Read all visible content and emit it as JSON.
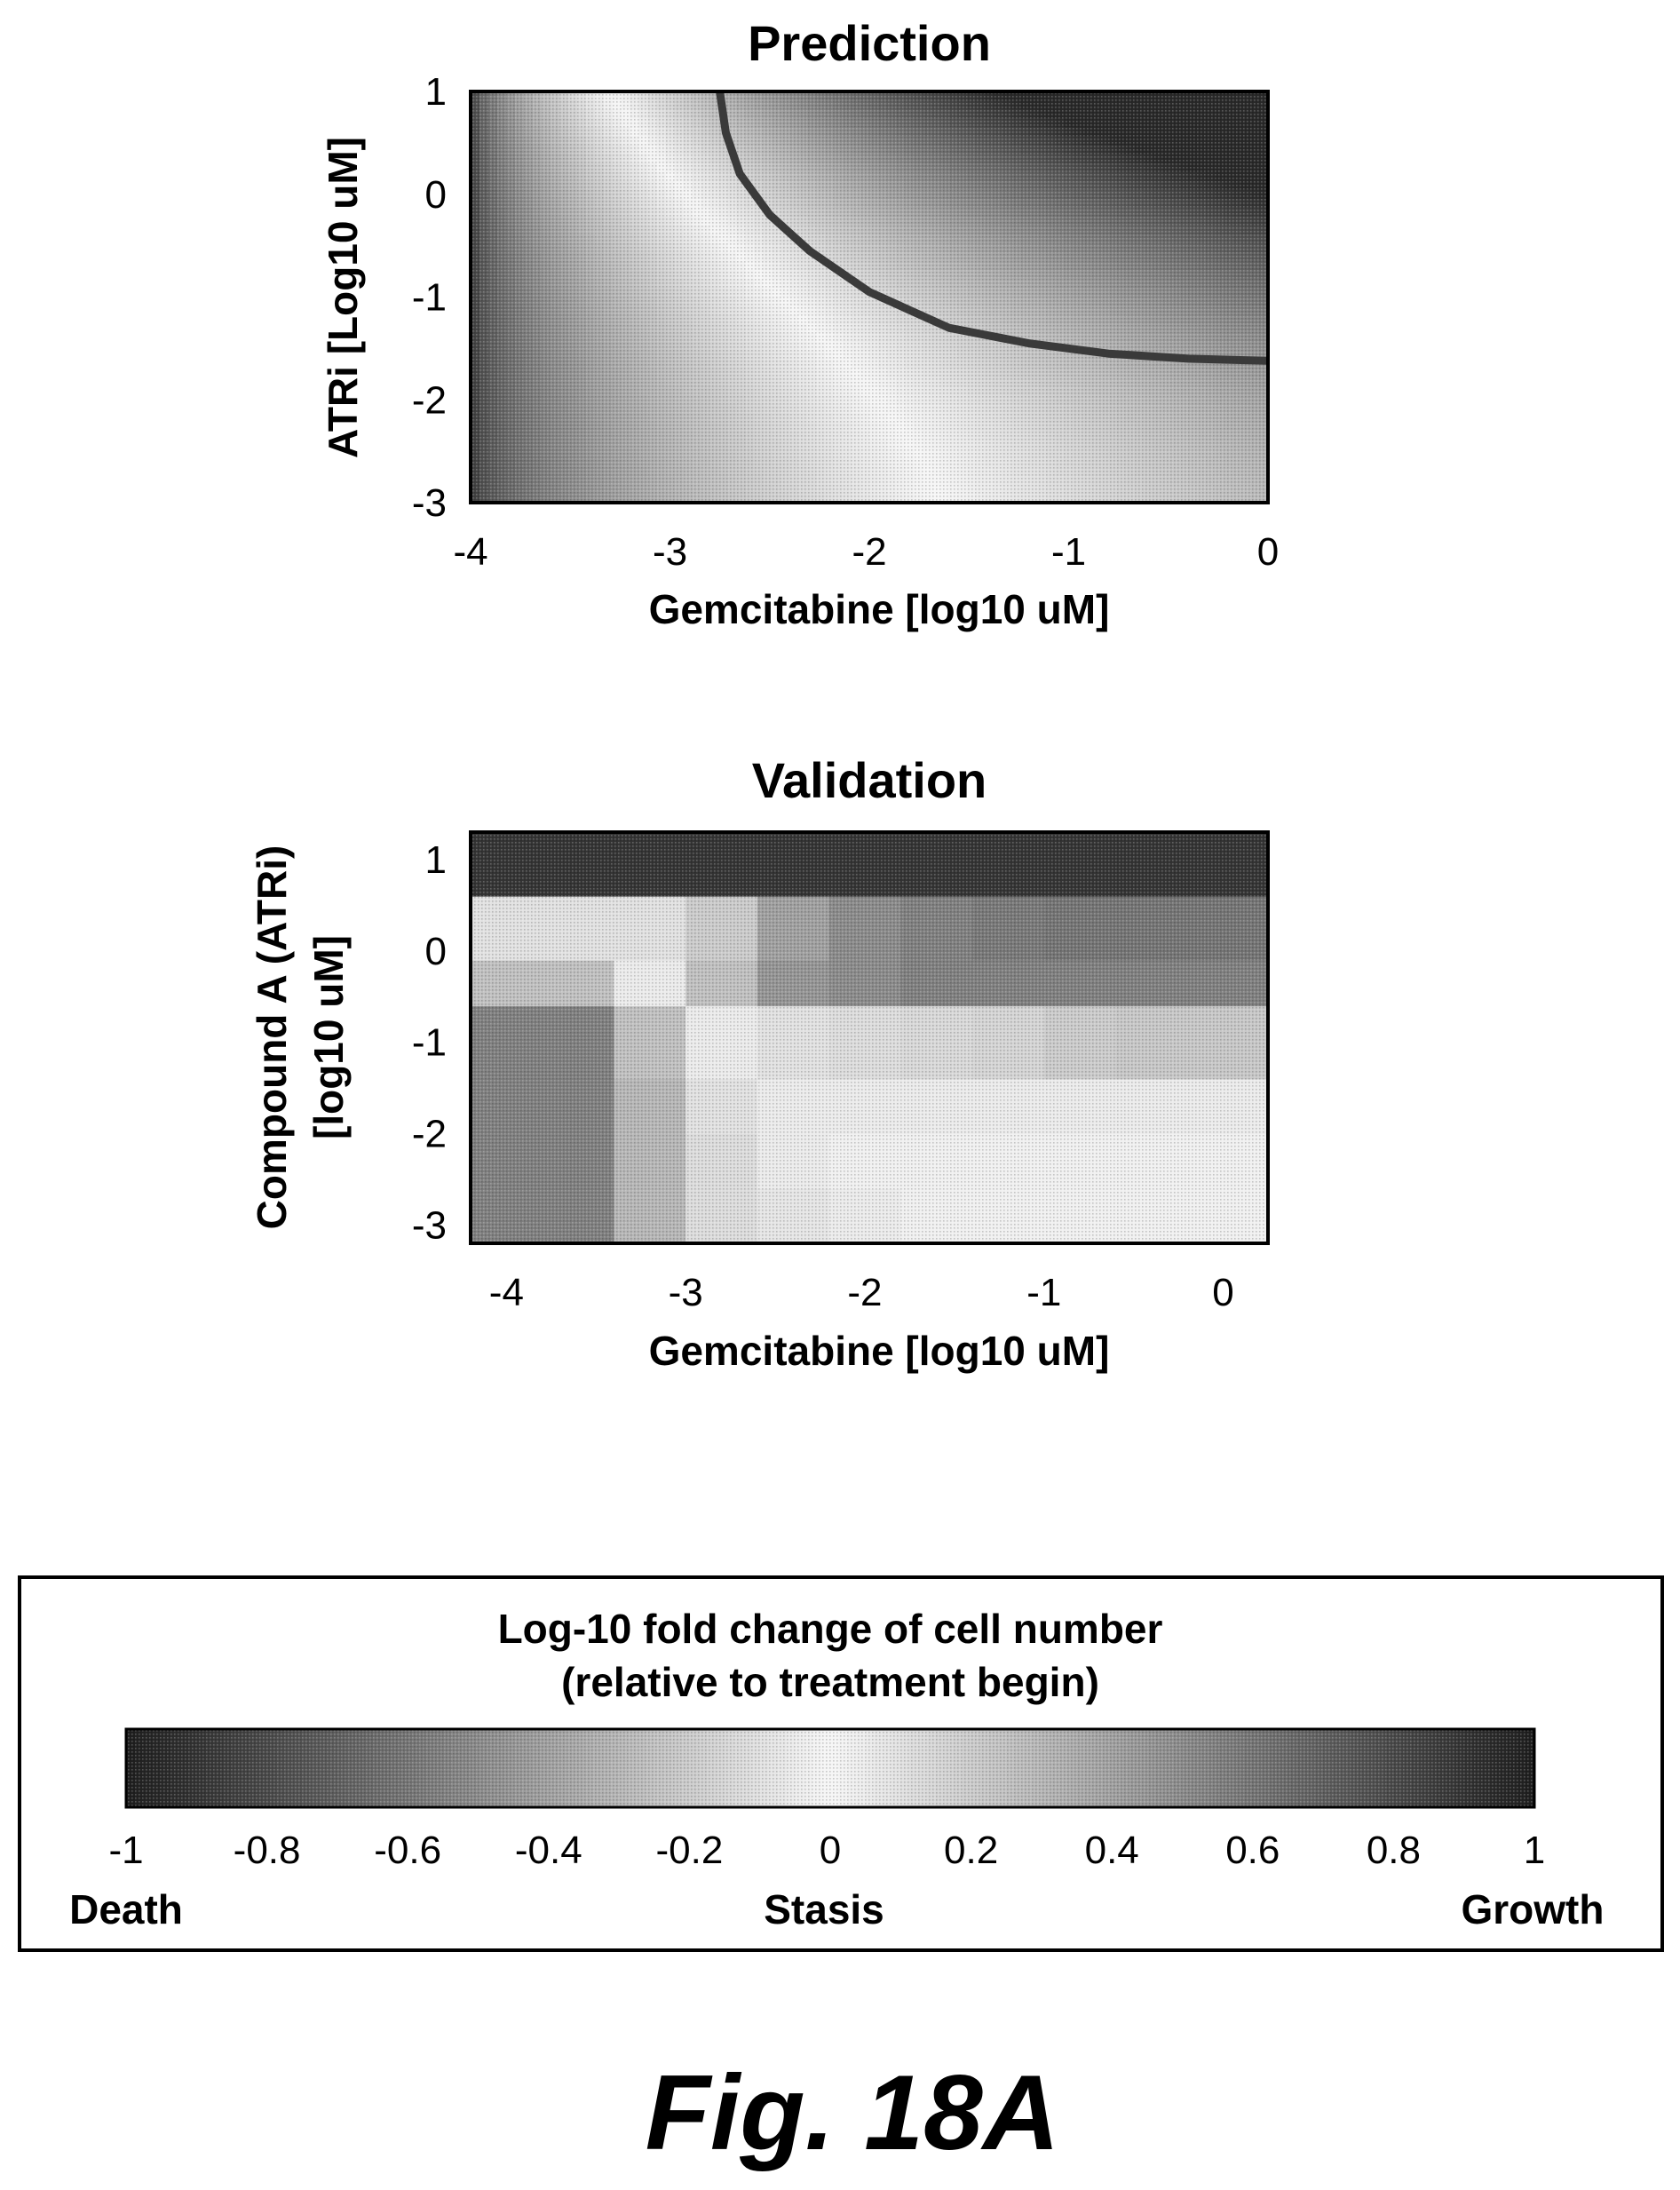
{
  "chart_data": [
    {
      "type": "heatmap",
      "title": "Prediction",
      "xlabel": "Gemcitabine [log10 uM]",
      "ylabel": "ATRi [Log10 uM]",
      "xlim": [
        -4,
        0
      ],
      "ylim": [
        -3,
        1
      ],
      "x_ticks": [
        "-4",
        "-3",
        "-2",
        "-1",
        "0"
      ],
      "y_ticks": [
        "1",
        "0",
        "-1",
        "-2",
        "-3"
      ],
      "surface": "continuous predicted log10 fold change; death (~-0.9) at low gemcitabine and low ATRi, stasis (~0) in the central region, growth (~0.9) at high gemcitabine and high ATRi",
      "contour_curve": {
        "x": [
          -2.75,
          -2.72,
          -2.65,
          -2.5,
          -2.3,
          -2.0,
          -1.6,
          -1.2,
          -0.8,
          -0.4,
          0
        ],
        "y": [
          1.0,
          0.6,
          0.2,
          -0.2,
          -0.55,
          -0.95,
          -1.3,
          -1.45,
          -1.55,
          -1.6,
          -1.62
        ]
      }
    },
    {
      "type": "heatmap",
      "title": "Validation",
      "xlabel": "Gemcitabine [log10 uM]",
      "ylabel_lines": [
        "Compound A (ATRi)",
        "[log10 uM]"
      ],
      "xlim": [
        -4.2,
        0.25
      ],
      "ylim": [
        -3.2,
        1.3
      ],
      "x_ticks": [
        "-4",
        "-3",
        "-2",
        "-1",
        "0"
      ],
      "y_ticks": [
        "1",
        "0",
        "-1",
        "-2",
        "-3"
      ],
      "x_bin_edges": [
        -4.2,
        -3.4,
        -3.0,
        -2.6,
        -2.2,
        -1.8,
        -1.4,
        -1.0,
        -0.6,
        -0.2,
        0.25
      ],
      "y_bin_edges": [
        -3.2,
        -2.6,
        -2.0,
        -1.4,
        -0.6,
        -0.1,
        0.6,
        1.3
      ],
      "values": [
        [
          -0.55,
          -0.3,
          -0.12,
          -0.08,
          -0.05,
          -0.03,
          -0.03,
          -0.03,
          -0.03,
          -0.03
        ],
        [
          -0.55,
          -0.3,
          -0.12,
          -0.05,
          -0.03,
          -0.03,
          -0.03,
          -0.03,
          -0.03,
          -0.03
        ],
        [
          -0.55,
          -0.3,
          -0.1,
          0.05,
          0.05,
          0.05,
          0.05,
          0.05,
          0.05,
          0.05
        ],
        [
          -0.55,
          -0.25,
          -0.05,
          0.1,
          0.12,
          0.14,
          0.16,
          0.2,
          0.22,
          0.22
        ],
        [
          -0.25,
          -0.05,
          0.25,
          0.45,
          0.5,
          0.55,
          0.55,
          0.55,
          0.55,
          0.55
        ],
        [
          -0.1,
          -0.1,
          0.2,
          0.4,
          0.5,
          0.55,
          0.58,
          0.6,
          0.6,
          0.6
        ],
        [
          0.9,
          0.9,
          0.9,
          0.9,
          0.9,
          0.9,
          0.9,
          0.9,
          0.9,
          0.9
        ]
      ]
    }
  ],
  "colorbar": {
    "title_lines": [
      "Log-10 fold change of cell number",
      "(relative to treatment begin)"
    ],
    "ticks": [
      "-1",
      "-0.8",
      "-0.6",
      "-0.4",
      "-0.2",
      "0",
      "0.2",
      "0.4",
      "0.6",
      "0.8",
      "1"
    ],
    "range": [
      -1,
      1
    ],
    "end_labels": {
      "left": "Death",
      "center": "Stasis",
      "right": "Growth"
    }
  },
  "figure_label": "Fig. 18A",
  "colors": {
    "extreme": "#1f1f1f",
    "middle": "#f6f6f6",
    "contour": "#3a3a3a"
  }
}
